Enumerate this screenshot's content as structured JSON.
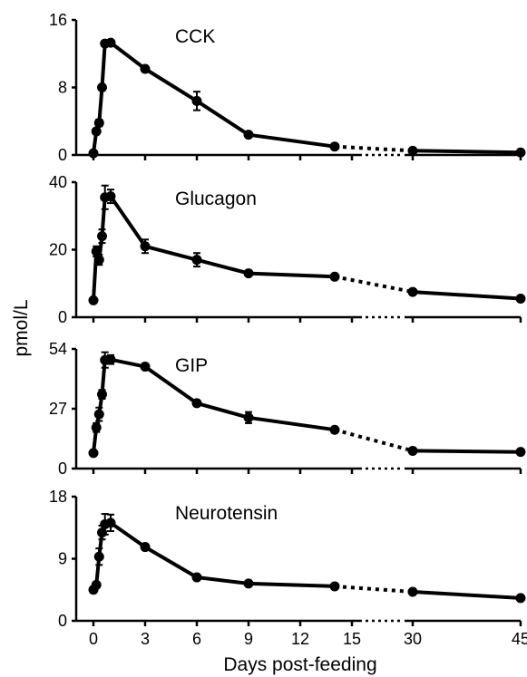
{
  "chart_data": {
    "type": "line",
    "xlabel": "Days post-feeding",
    "ylabel": "pmol/L",
    "x_ticks": [
      0,
      3,
      6,
      9,
      12,
      15,
      30,
      45
    ],
    "x_break": [
      15,
      30
    ],
    "panels": [
      {
        "title": "CCK",
        "ylim": [
          0,
          16
        ],
        "yticks": [
          0,
          8,
          16
        ],
        "x": [
          0,
          0.17,
          0.33,
          0.5,
          0.67,
          1,
          3,
          6,
          9,
          14,
          30,
          45
        ],
        "values": [
          0.2,
          2.8,
          3.8,
          8.0,
          13.2,
          13.3,
          10.2,
          6.4,
          2.4,
          1.0,
          0.5,
          0.3
        ],
        "errors": [
          0.1,
          0.3,
          0.4,
          0.3,
          0.3,
          0.2,
          0.3,
          1.1,
          0.2,
          0.2,
          0.1,
          0.1
        ]
      },
      {
        "title": "Glucagon",
        "ylim": [
          0,
          40
        ],
        "yticks": [
          0,
          20,
          40
        ],
        "x": [
          0,
          0.17,
          0.33,
          0.5,
          0.67,
          1,
          3,
          6,
          9,
          14,
          30,
          45
        ],
        "values": [
          5.0,
          19.5,
          17.0,
          24.0,
          35.5,
          35.8,
          21.0,
          17.0,
          13.0,
          12.0,
          7.5,
          5.5
        ],
        "errors": [
          0.5,
          1.5,
          1.5,
          2.0,
          3.5,
          2.0,
          2.0,
          2.0,
          0.5,
          0.5,
          0.5,
          0.5
        ]
      },
      {
        "title": "GIP",
        "ylim": [
          0,
          54
        ],
        "yticks": [
          0,
          27,
          54
        ],
        "x": [
          0,
          0.17,
          0.33,
          0.5,
          0.67,
          1,
          3,
          6,
          9,
          14,
          30,
          45
        ],
        "values": [
          7.0,
          18.5,
          24.5,
          33.5,
          49.0,
          49.2,
          46.0,
          29.5,
          23.0,
          17.5,
          8.0,
          7.5
        ],
        "errors": [
          0.5,
          2.0,
          3.0,
          2.0,
          3.5,
          2.0,
          1.0,
          1.0,
          2.5,
          1.0,
          0.5,
          0.5
        ]
      },
      {
        "title": "Neurotensin",
        "ylim": [
          0,
          18
        ],
        "yticks": [
          0,
          9,
          18
        ],
        "x": [
          0,
          0.17,
          0.33,
          0.5,
          0.67,
          1,
          3,
          6,
          9,
          14,
          30,
          45
        ],
        "values": [
          4.5,
          5.2,
          9.3,
          12.8,
          14.0,
          14.2,
          10.7,
          6.3,
          5.4,
          5.0,
          4.2,
          3.3
        ],
        "errors": [
          0.4,
          0.4,
          1.2,
          1.0,
          1.5,
          1.2,
          0.4,
          0.3,
          0.3,
          0.3,
          0.3,
          0.3
        ]
      }
    ]
  }
}
